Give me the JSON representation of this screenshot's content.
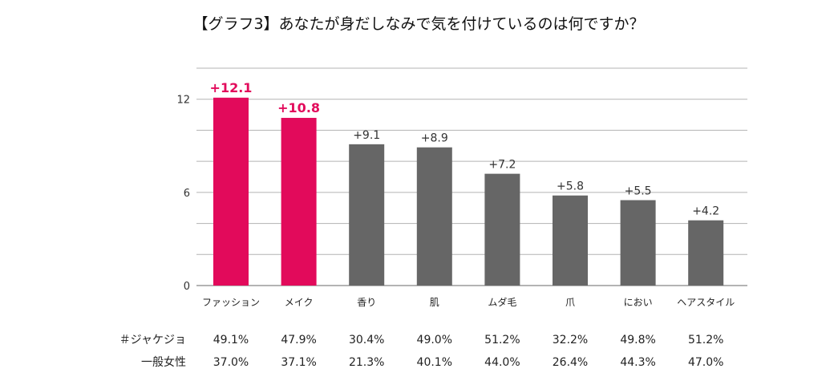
{
  "chart_data": {
    "type": "bar",
    "title": "【グラフ3】あなたが身だしなみで気を付けているのは何ですか？",
    "categories": [
      "ファッション",
      "メイク",
      "香り",
      "肌",
      "ムダ毛",
      "爪",
      "におい",
      "ヘアスタイル"
    ],
    "values": [
      12.1,
      10.8,
      9.1,
      8.9,
      7.2,
      5.8,
      5.5,
      4.2
    ],
    "value_labels": [
      "+12.1",
      "+10.8",
      "+9.1",
      "+8.9",
      "+7.2",
      "+5.8",
      "+5.5",
      "+4.2"
    ],
    "highlighted": [
      true,
      true,
      false,
      false,
      false,
      false,
      false,
      false
    ],
    "colors": {
      "highlight": "#e20a5b",
      "normal": "#666666",
      "grid": "#b3b3b3",
      "axis": "#888888"
    },
    "y_ticks": [
      "0",
      "6",
      "12"
    ],
    "ylim": [
      0,
      14
    ],
    "grid": true,
    "xlabel": "",
    "ylabel": ""
  },
  "table": {
    "rows": [
      {
        "label": "＃ジャケジョ",
        "values": [
          "49.1%",
          "47.9%",
          "30.4%",
          "49.0%",
          "51.2%",
          "32.2%",
          "49.8%",
          "51.2%"
        ]
      },
      {
        "label": "一般女性",
        "values": [
          "37.0%",
          "37.1%",
          "21.3%",
          "40.1%",
          "44.0%",
          "26.4%",
          "44.3%",
          "47.0%"
        ]
      }
    ]
  }
}
